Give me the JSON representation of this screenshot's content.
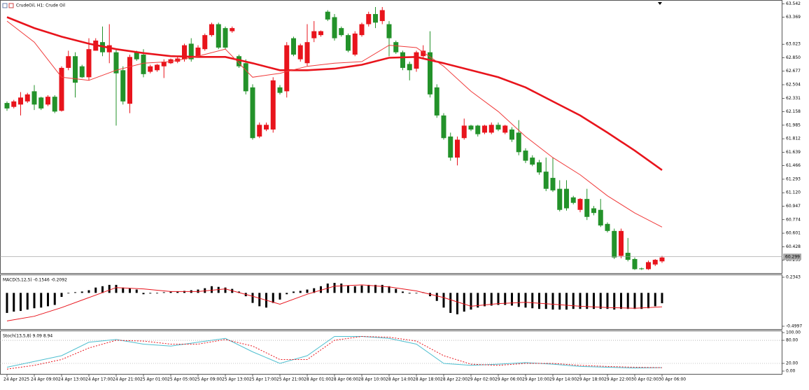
{
  "chart_data": [
    {
      "type": "candlestick",
      "title": "CrudeOil, H1: Crude Oil",
      "categories": [
        "24 Apr 2025",
        null,
        null,
        null,
        "24 Apr 09:00",
        null,
        null,
        null,
        "24 Apr 13:00",
        null,
        null,
        null,
        "24 Apr 17:00",
        null,
        null,
        null,
        "24 Apr 21:00",
        null,
        null,
        null,
        "25 Apr 01:00",
        null,
        null,
        null,
        "25 Apr 05:00",
        null,
        null,
        null,
        "25 Apr 09:00",
        null,
        null,
        null,
        "25 Apr 13:00",
        null,
        null,
        null,
        "25 Apr 17:00",
        null,
        null,
        null,
        "25 Apr 21:00",
        null,
        null,
        null,
        "28 Apr 01:00",
        null,
        null,
        null,
        "28 Apr 06:00",
        null,
        null,
        null,
        "28 Apr 10:00",
        null,
        null,
        null,
        "28 Apr 14:00",
        null,
        null,
        null,
        "28 Apr 18:00",
        null,
        null,
        null,
        "28 Apr 22:00",
        null,
        null,
        null,
        "29 Apr 02:00",
        null,
        null,
        null,
        "29 Apr 06:00",
        null,
        null,
        null,
        "29 Apr 10:00",
        null,
        null,
        null,
        "29 Apr 14:00",
        null,
        null,
        null,
        "29 Apr 18:00",
        null,
        null,
        null,
        "29 Apr 22:00",
        null,
        null,
        null,
        "30 Apr 02:00",
        null,
        null,
        null,
        "30 Apr 06:00"
      ],
      "open": [
        62.27,
        62.22,
        62.25,
        62.29,
        62.42,
        62.34,
        62.25,
        62.35,
        62.17,
        62.72,
        62.87,
        62.74,
        62.6,
        62.94,
        63.05,
        62.92,
        62.92,
        62.69,
        62.26,
        62.92,
        62.89,
        62.67,
        62.69,
        62.74,
        62.78,
        62.8,
        62.83,
        63.03,
        62.87,
        62.96,
        63.14,
        63.28,
        63.23,
        63.19,
        62.87,
        62.78,
        62.47,
        61.84,
        61.93,
        61.93,
        62.47,
        62.42,
        63.1,
        62.83,
        62.78,
        63.1,
        63.14,
        63.44,
        63.37,
        63.23,
        63.14,
        62.89,
        63.14,
        63.28,
        63.41,
        63.32,
        63.28,
        63.05,
        62.92,
        62.77,
        62.71,
        62.87,
        62.92,
        62.47,
        62.11,
        61.84,
        61.57,
        61.82,
        61.98,
        61.98,
        61.89,
        61.89,
        61.99,
        61.89,
        61.93,
        61.89,
        61.66,
        61.57,
        61.51,
        61.39,
        61.31,
        61.17,
        61.17,
        61.06,
        60.9,
        61.04,
        60.92,
        60.9,
        60.72,
        60.63,
        60.31,
        60.35,
        60.27,
        60.15,
        60.14,
        60.2,
        60.24
      ],
      "high": [
        62.29,
        62.31,
        62.41,
        62.4,
        62.5,
        62.35,
        62.37,
        62.37,
        62.74,
        62.94,
        62.92,
        62.76,
        63.1,
        63.1,
        63.25,
        63.28,
        62.96,
        62.74,
        62.89,
        62.94,
        62.96,
        62.76,
        62.77,
        62.83,
        62.84,
        62.86,
        63.03,
        63.1,
        63.01,
        63.16,
        63.3,
        63.3,
        63.25,
        63.25,
        62.89,
        62.83,
        62.51,
        62.02,
        62.02,
        62.6,
        62.5,
        63.05,
        63.12,
        63.03,
        63.28,
        63.32,
        63.2,
        63.46,
        63.41,
        63.25,
        63.16,
        63.19,
        63.3,
        63.44,
        63.5,
        63.5,
        63.32,
        63.07,
        62.94,
        62.8,
        62.94,
        63.01,
        63.19,
        62.51,
        62.14,
        61.89,
        61.84,
        62.07,
        61.99,
        61.99,
        61.99,
        62.02,
        62.02,
        61.99,
        61.96,
        62.05,
        61.69,
        61.6,
        61.54,
        61.57,
        61.57,
        61.28,
        61.28,
        61.08,
        61.05,
        61.17,
        60.95,
        61.04,
        60.74,
        60.66,
        60.66,
        60.54,
        60.29,
        60.16,
        60.25,
        60.27,
        60.31
      ],
      "low": [
        62.17,
        62.2,
        62.11,
        62.27,
        62.18,
        62.18,
        62.23,
        62.14,
        62.16,
        62.69,
        62.34,
        62.59,
        62.56,
        62.94,
        62.87,
        62.78,
        61.98,
        62.25,
        62.14,
        62.81,
        62.6,
        62.65,
        62.67,
        62.59,
        62.77,
        62.78,
        62.8,
        62.8,
        62.86,
        62.94,
        63.12,
        62.96,
        62.96,
        63.17,
        62.72,
        62.38,
        61.8,
        61.82,
        61.91,
        61.89,
        62.38,
        62.34,
        62.87,
        62.8,
        62.74,
        63.05,
        63.12,
        63.32,
        63.07,
        63.12,
        62.92,
        62.87,
        63.12,
        63.25,
        63.23,
        63.28,
        62.87,
        62.9,
        62.69,
        62.56,
        62.67,
        62.85,
        62.34,
        62.08,
        61.8,
        61.53,
        61.47,
        61.8,
        61.91,
        61.84,
        61.87,
        61.87,
        61.91,
        61.87,
        61.77,
        61.6,
        61.5,
        61.46,
        61.35,
        61.14,
        61.13,
        60.88,
        60.89,
        60.97,
        60.87,
        60.77,
        60.83,
        60.68,
        60.61,
        60.27,
        60.28,
        60.24,
        60.13,
        60.13,
        60.13,
        60.18,
        60.22
      ],
      "close": [
        62.2,
        62.29,
        62.34,
        62.38,
        62.25,
        62.2,
        62.35,
        62.16,
        62.72,
        62.87,
        62.53,
        62.6,
        62.96,
        63.07,
        62.92,
        63.01,
        62.65,
        62.29,
        62.86,
        62.83,
        62.64,
        62.74,
        62.76,
        62.8,
        62.83,
        62.84,
        63.01,
        62.83,
        62.98,
        63.14,
        63.28,
        62.98,
        62.98,
        63.23,
        62.74,
        62.42,
        61.82,
        61.99,
        61.99,
        62.56,
        62.4,
        63.01,
        62.89,
        63.01,
        63.05,
        63.19,
        63.19,
        63.34,
        63.1,
        63.14,
        62.94,
        63.16,
        63.28,
        63.41,
        63.3,
        63.46,
        63.1,
        62.92,
        62.72,
        62.69,
        62.92,
        62.94,
        62.38,
        62.11,
        61.82,
        61.57,
        61.8,
        61.98,
        61.93,
        61.87,
        61.98,
        61.99,
        61.93,
        61.98,
        61.8,
        61.64,
        61.53,
        61.48,
        61.38,
        61.17,
        61.15,
        60.9,
        60.92,
        60.99,
        61.04,
        60.81,
        60.86,
        60.7,
        60.63,
        60.29,
        60.63,
        60.26,
        60.14,
        60.14,
        60.23,
        60.26,
        60.29
      ],
      "up_color": "#e8141c",
      "down_color": "#23922a",
      "series": [
        {
          "color": "#e8141c",
          "x": [
            "24 Apr 2025",
            "24 Apr 09:00",
            "24 Apr 13:00",
            "24 Apr 17:00",
            "24 Apr 21:00",
            "25 Apr 01:00",
            "25 Apr 05:00",
            "25 Apr 09:00",
            "25 Apr 13:00",
            "25 Apr 17:00",
            "25 Apr 21:00",
            "28 Apr 01:00",
            "28 Apr 06:00",
            "28 Apr 10:00",
            "28 Apr 14:00",
            "28 Apr 18:00",
            "28 Apr 22:00",
            "29 Apr 02:00",
            "29 Apr 06:00",
            "29 Apr 10:00",
            "29 Apr 14:00",
            "29 Apr 18:00",
            "29 Apr 22:00",
            "30 Apr 02:00",
            "30 Apr 06:00"
          ],
          "values": [
            63.37,
            63.23,
            63.12,
            63.03,
            62.96,
            62.91,
            62.87,
            62.86,
            62.86,
            62.78,
            62.69,
            62.69,
            62.71,
            62.76,
            62.85,
            62.86,
            62.78,
            62.69,
            62.6,
            62.47,
            62.29,
            62.11,
            61.89,
            61.66,
            61.41
          ]
        },
        {
          "color": "#f03a3a",
          "x": [
            "24 Apr 2025",
            "24 Apr 09:00",
            "24 Apr 13:00",
            "24 Apr 17:00",
            "24 Apr 21:00",
            "25 Apr 01:00",
            "25 Apr 05:00",
            "25 Apr 09:00",
            "25 Apr 13:00",
            "25 Apr 17:00",
            "25 Apr 21:00",
            "28 Apr 01:00",
            "28 Apr 06:00",
            "28 Apr 10:00",
            "28 Apr 14:00",
            "28 Apr 18:00",
            "28 Apr 22:00",
            "29 Apr 02:00",
            "29 Apr 06:00",
            "29 Apr 10:00",
            "29 Apr 14:00",
            "29 Apr 18:00",
            "29 Apr 22:00",
            "30 Apr 02:00",
            "30 Apr 06:00"
          ],
          "values": [
            63.32,
            63.05,
            62.6,
            62.56,
            62.69,
            62.78,
            62.8,
            62.87,
            62.96,
            62.6,
            62.65,
            62.74,
            62.78,
            62.8,
            63.01,
            62.98,
            62.74,
            62.42,
            62.16,
            61.84,
            61.57,
            61.35,
            61.08,
            60.86,
            60.68
          ]
        }
      ],
      "last_price": 60.299,
      "ylim": [
        60.09,
        63.59
      ],
      "yticks": [
        63.542,
        63.369,
        63.023,
        {
          "value": 62.85,
          "label": "62.850"
        },
        62.677,
        62.504,
        62.331,
        62.158,
        61.985,
        61.812,
        61.639,
        61.466,
        61.293,
        {
          "value": 61.12,
          "label": "61.120"
        },
        60.947,
        60.774,
        60.601,
        60.428,
        60.255
      ]
    },
    {
      "type": "macd",
      "title": "MACD(5,12,5) -0.1546 -0.2092",
      "color": "#000000",
      "values": [
        -0.3,
        -0.28,
        -0.27,
        -0.25,
        -0.23,
        -0.22,
        -0.2,
        -0.18,
        -0.06,
        0.0,
        0.01,
        0.02,
        0.04,
        0.08,
        0.1,
        0.12,
        0.12,
        0.08,
        0.07,
        0.05,
        -0.02,
        -0.01,
        0.0,
        0.01,
        0.02,
        0.02,
        0.03,
        0.04,
        0.05,
        0.07,
        0.1,
        0.09,
        0.08,
        0.06,
        0.02,
        -0.05,
        -0.15,
        -0.2,
        -0.22,
        -0.15,
        -0.1,
        -0.02,
        0.02,
        0.03,
        0.05,
        0.07,
        0.1,
        0.14,
        0.15,
        0.14,
        0.11,
        0.1,
        0.11,
        0.12,
        0.12,
        0.12,
        0.1,
        0.06,
        0.02,
        -0.01,
        0.0,
        0.01,
        -0.05,
        -0.12,
        -0.22,
        -0.3,
        -0.32,
        -0.28,
        -0.25,
        -0.22,
        -0.2,
        -0.19,
        -0.18,
        -0.18,
        -0.19,
        -0.21,
        -0.22,
        -0.23,
        -0.24,
        -0.24,
        -0.25,
        -0.25,
        -0.25,
        -0.24,
        -0.24,
        -0.24,
        -0.24,
        -0.24,
        -0.24,
        -0.25,
        -0.24,
        -0.24,
        -0.24,
        -0.24,
        -0.23,
        -0.2,
        -0.1546
      ],
      "series": [
        {
          "color": "#e8141c",
          "x": [
            "24 Apr 2025",
            "24 Apr 09:00",
            "24 Apr 13:00",
            "24 Apr 17:00",
            "24 Apr 21:00",
            "25 Apr 01:00",
            "25 Apr 05:00",
            "25 Apr 09:00",
            "25 Apr 13:00",
            "25 Apr 17:00",
            "25 Apr 21:00",
            "28 Apr 01:00",
            "28 Apr 06:00",
            "28 Apr 10:00",
            "28 Apr 14:00",
            "28 Apr 18:00",
            "28 Apr 22:00",
            "29 Apr 02:00",
            "29 Apr 06:00",
            "29 Apr 10:00",
            "29 Apr 14:00",
            "29 Apr 18:00",
            "29 Apr 22:00",
            "30 Apr 02:00",
            "30 Apr 06:00"
          ],
          "values": [
            -0.42,
            -0.35,
            -0.22,
            -0.07,
            0.08,
            0.06,
            0.02,
            0.02,
            0.06,
            -0.05,
            -0.17,
            -0.02,
            0.1,
            0.12,
            0.09,
            0.03,
            -0.07,
            -0.2,
            -0.16,
            -0.14,
            -0.17,
            -0.2,
            -0.22,
            -0.23,
            -0.2092
          ]
        }
      ],
      "ylim": [
        -0.542,
        0.276
      ],
      "yticks": [
        0.2343,
        -0.4997
      ]
    },
    {
      "type": "stoch",
      "title": "Stoch(13,5,8) 9.09 8.94",
      "series": [
        {
          "color": "#4fbfd0",
          "style": "solid",
          "x": [
            "24 Apr 2025",
            "24 Apr 09:00",
            "24 Apr 13:00",
            "24 Apr 17:00",
            "24 Apr 21:00",
            "25 Apr 01:00",
            "25 Apr 05:00",
            "25 Apr 09:00",
            "25 Apr 13:00",
            "25 Apr 17:00",
            "25 Apr 21:00",
            "28 Apr 01:00",
            "28 Apr 06:00",
            "28 Apr 10:00",
            "28 Apr 14:00",
            "28 Apr 18:00",
            "28 Apr 22:00",
            "29 Apr 02:00",
            "29 Apr 06:00",
            "29 Apr 10:00",
            "29 Apr 14:00",
            "29 Apr 18:00",
            "29 Apr 22:00",
            "30 Apr 02:00",
            "30 Apr 06:00"
          ],
          "values": [
            10,
            25,
            40,
            75,
            82,
            70,
            65,
            75,
            85,
            50,
            20,
            40,
            90,
            90,
            85,
            70,
            20,
            15,
            18,
            22,
            18,
            12,
            10,
            8,
            9.09
          ]
        },
        {
          "color": "#e8141c",
          "style": "dotted",
          "x": [
            "24 Apr 2025",
            "24 Apr 09:00",
            "24 Apr 13:00",
            "24 Apr 17:00",
            "24 Apr 21:00",
            "25 Apr 01:00",
            "25 Apr 05:00",
            "25 Apr 09:00",
            "25 Apr 13:00",
            "25 Apr 17:00",
            "25 Apr 21:00",
            "28 Apr 01:00",
            "28 Apr 06:00",
            "28 Apr 10:00",
            "28 Apr 14:00",
            "28 Apr 18:00",
            "28 Apr 22:00",
            "29 Apr 02:00",
            "29 Apr 06:00",
            "29 Apr 10:00",
            "29 Apr 14:00",
            "29 Apr 18:00",
            "29 Apr 22:00",
            "30 Apr 02:00",
            "30 Apr 06:00"
          ],
          "values": [
            5,
            15,
            30,
            60,
            80,
            78,
            70,
            70,
            82,
            65,
            30,
            30,
            80,
            90,
            88,
            78,
            40,
            18,
            15,
            20,
            20,
            15,
            12,
            10,
            8.94
          ]
        }
      ],
      "levels": [
        80,
        20
      ],
      "ylim": [
        -9.1,
        105.5
      ],
      "yticks": [
        {
          "value": 100,
          "label": "100.00"
        },
        {
          "value": 80,
          "label": "80.00"
        },
        {
          "value": 20,
          "label": "20.00"
        },
        {
          "value": 0,
          "label": "0.00"
        }
      ]
    }
  ]
}
